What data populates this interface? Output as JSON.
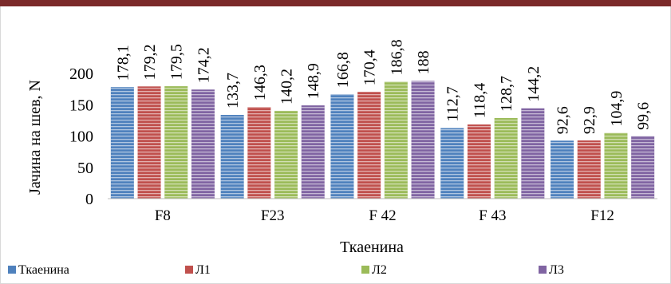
{
  "chart_data": {
    "type": "bar",
    "categories": [
      "F8",
      "F23",
      "F 42",
      "F 43",
      "F12"
    ],
    "series": [
      {
        "name": "Ткаенина",
        "values": [
          178.1,
          133.7,
          166.8,
          112.7,
          92.6
        ],
        "labels": [
          "178,1",
          "133,7",
          "166,8",
          "112,7",
          "92,6"
        ],
        "color": "#4f81bd"
      },
      {
        "name": "Л1",
        "values": [
          179.2,
          146.3,
          170.4,
          118.4,
          92.9
        ],
        "labels": [
          "179,2",
          "146,3",
          "170,4",
          "118,4",
          "92,9"
        ],
        "color": "#c0504d"
      },
      {
        "name": "Л2",
        "values": [
          179.5,
          140.2,
          186.8,
          128.7,
          104.9
        ],
        "labels": [
          "179,5",
          "140,2",
          "186,8",
          "128,7",
          "104,9"
        ],
        "color": "#9bbb59"
      },
      {
        "name": "Л3",
        "values": [
          174.2,
          148.9,
          188,
          144.2,
          99.6
        ],
        "labels": [
          "174,2",
          "148,9",
          "188",
          "144,2",
          "99,6"
        ],
        "color": "#8064a2"
      }
    ],
    "title": "",
    "xlabel": "Ткаенина",
    "ylabel": "Јачина на шев, N",
    "ylim": [
      0,
      200
    ],
    "yticks": [
      "0",
      "50",
      "100",
      "150",
      "200"
    ],
    "legend_position": "bottom-left",
    "grid": false
  }
}
